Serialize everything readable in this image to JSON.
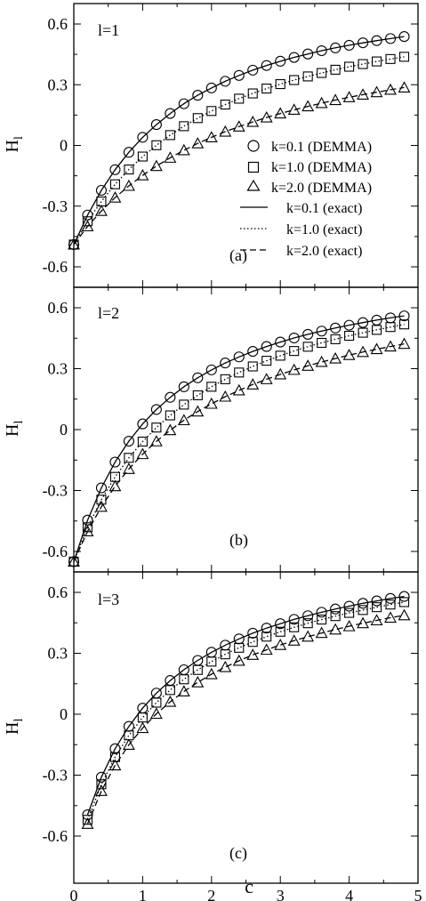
{
  "figure": {
    "x_axis_label": "c",
    "x_ticks": [
      "0",
      "1",
      "2",
      "3",
      "4",
      "5"
    ],
    "y_ticks": [
      "0.6",
      "0.3",
      "0",
      "-0.3",
      "-0.6"
    ],
    "y_label_main": "H",
    "y_label_sub": "l"
  },
  "legend": {
    "entries": [
      {
        "label": "k=0.1 (DEMMA)",
        "marker": "circle"
      },
      {
        "label": "k=1.0 (DEMMA)",
        "marker": "square"
      },
      {
        "label": "k=2.0 (DEMMA)",
        "marker": "triangle"
      },
      {
        "label": "k=0.1 (exact)",
        "line": "solid"
      },
      {
        "label": "k=1.0 (exact)",
        "line": "dotted"
      },
      {
        "label": "k=2.0 (exact)",
        "line": "dashed"
      }
    ]
  },
  "chart_data": [
    {
      "type": "line",
      "panel_tag": "(a)",
      "annotation": "l=1",
      "xlabel": "",
      "ylabel": "Hl",
      "xlim": [
        0,
        5
      ],
      "ylim": [
        -0.72,
        0.7
      ],
      "x": [
        0.0,
        0.2,
        0.4,
        0.6,
        0.8,
        1.0,
        1.2,
        1.4,
        1.6,
        1.8,
        2.0,
        2.2,
        2.4,
        2.6,
        2.8,
        3.0,
        3.2,
        3.4,
        3.6,
        3.8,
        4.0,
        4.2,
        4.4,
        4.6,
        4.8
      ],
      "series": [
        {
          "name": "k=0.1",
          "marker": "circle",
          "line": "solid",
          "values": [
            -0.49,
            -0.344,
            -0.222,
            -0.12,
            -0.034,
            0.04,
            0.103,
            0.158,
            0.206,
            0.248,
            0.284,
            0.317,
            0.346,
            0.372,
            0.395,
            0.416,
            0.435,
            0.452,
            0.468,
            0.482,
            0.495,
            0.507,
            0.518,
            0.528,
            0.538
          ]
        },
        {
          "name": "k=1.0",
          "marker": "square",
          "line": "dotted",
          "values": [
            -0.49,
            -0.375,
            -0.277,
            -0.192,
            -0.119,
            -0.055,
            0.001,
            0.051,
            0.095,
            0.135,
            0.17,
            0.202,
            0.231,
            0.257,
            0.281,
            0.303,
            0.323,
            0.341,
            0.358,
            0.374,
            0.389,
            0.402,
            0.415,
            0.427,
            0.438
          ]
        },
        {
          "name": "k=2.0",
          "marker": "triangle",
          "line": "dashed",
          "values": [
            -0.49,
            -0.4,
            -0.324,
            -0.258,
            -0.2,
            -0.148,
            -0.102,
            -0.061,
            -0.024,
            0.01,
            0.04,
            0.068,
            0.093,
            0.116,
            0.138,
            0.158,
            0.176,
            0.193,
            0.209,
            0.224,
            0.238,
            0.251,
            0.263,
            0.275,
            0.286
          ]
        }
      ]
    },
    {
      "type": "line",
      "panel_tag": "(b)",
      "annotation": "l=2",
      "xlabel": "",
      "ylabel": "Hl",
      "xlim": [
        0,
        5
      ],
      "ylim": [
        -0.72,
        0.7
      ],
      "x": [
        0.0,
        0.2,
        0.4,
        0.6,
        0.8,
        1.0,
        1.2,
        1.4,
        1.6,
        1.8,
        2.0,
        2.2,
        2.4,
        2.6,
        2.8,
        3.0,
        3.2,
        3.4,
        3.6,
        3.8,
        4.0,
        4.2,
        4.4,
        4.6,
        4.8
      ],
      "series": [
        {
          "name": "k=0.1",
          "marker": "circle",
          "line": "solid",
          "values": [
            -0.65,
            -0.446,
            -0.287,
            -0.16,
            -0.057,
            0.028,
            0.099,
            0.159,
            0.211,
            0.255,
            0.294,
            0.328,
            0.358,
            0.385,
            0.409,
            0.431,
            0.451,
            0.469,
            0.485,
            0.5,
            0.514,
            0.527,
            0.539,
            0.55,
            0.56
          ]
        },
        {
          "name": "k=1.0",
          "marker": "square",
          "line": "dotted",
          "values": [
            -0.65,
            -0.481,
            -0.345,
            -0.233,
            -0.139,
            -0.059,
            0.01,
            0.07,
            0.123,
            0.169,
            0.211,
            0.248,
            0.281,
            0.311,
            0.339,
            0.364,
            0.387,
            0.408,
            0.427,
            0.445,
            0.462,
            0.477,
            0.491,
            0.505,
            0.518
          ]
        },
        {
          "name": "k=2.0",
          "marker": "triangle",
          "line": "dashed",
          "values": [
            -0.65,
            -0.501,
            -0.38,
            -0.279,
            -0.194,
            -0.121,
            -0.058,
            -0.003,
            0.046,
            0.089,
            0.127,
            0.162,
            0.193,
            0.222,
            0.248,
            0.272,
            0.294,
            0.314,
            0.333,
            0.35,
            0.367,
            0.382,
            0.396,
            0.409,
            0.422
          ]
        }
      ]
    },
    {
      "type": "line",
      "panel_tag": "(c)",
      "annotation": "l=3",
      "xlabel": "c",
      "ylabel": "Hl",
      "xlim": [
        0,
        5
      ],
      "ylim": [
        -0.72,
        0.7
      ],
      "x": [
        0.2,
        0.4,
        0.6,
        0.8,
        1.0,
        1.2,
        1.4,
        1.6,
        1.8,
        2.0,
        2.2,
        2.4,
        2.6,
        2.8,
        3.0,
        3.2,
        3.4,
        3.6,
        3.8,
        4.0,
        4.2,
        4.4,
        4.6,
        4.8
      ],
      "series": [
        {
          "name": "k=0.1",
          "marker": "circle",
          "line": "solid",
          "values": [
            -0.495,
            -0.31,
            -0.17,
            -0.06,
            0.03,
            0.104,
            0.166,
            0.219,
            0.265,
            0.305,
            0.34,
            0.371,
            0.399,
            0.424,
            0.446,
            0.467,
            0.485,
            0.502,
            0.518,
            0.532,
            0.546,
            0.558,
            0.57,
            0.58
          ]
        },
        {
          "name": "k=1.0",
          "marker": "square",
          "line": "dotted",
          "values": [
            -0.52,
            -0.345,
            -0.211,
            -0.104,
            -0.016,
            0.057,
            0.119,
            0.172,
            0.218,
            0.259,
            0.295,
            0.327,
            0.356,
            0.382,
            0.406,
            0.428,
            0.448,
            0.466,
            0.483,
            0.499,
            0.513,
            0.527,
            0.54,
            0.552
          ]
        },
        {
          "name": "k=2.0",
          "marker": "triangle",
          "line": "dashed",
          "values": [
            -0.54,
            -0.378,
            -0.252,
            -0.151,
            -0.068,
            0.002,
            0.061,
            0.112,
            0.157,
            0.197,
            0.232,
            0.263,
            0.292,
            0.317,
            0.341,
            0.362,
            0.382,
            0.4,
            0.417,
            0.433,
            0.448,
            0.462,
            0.475,
            0.487
          ]
        }
      ]
    }
  ]
}
